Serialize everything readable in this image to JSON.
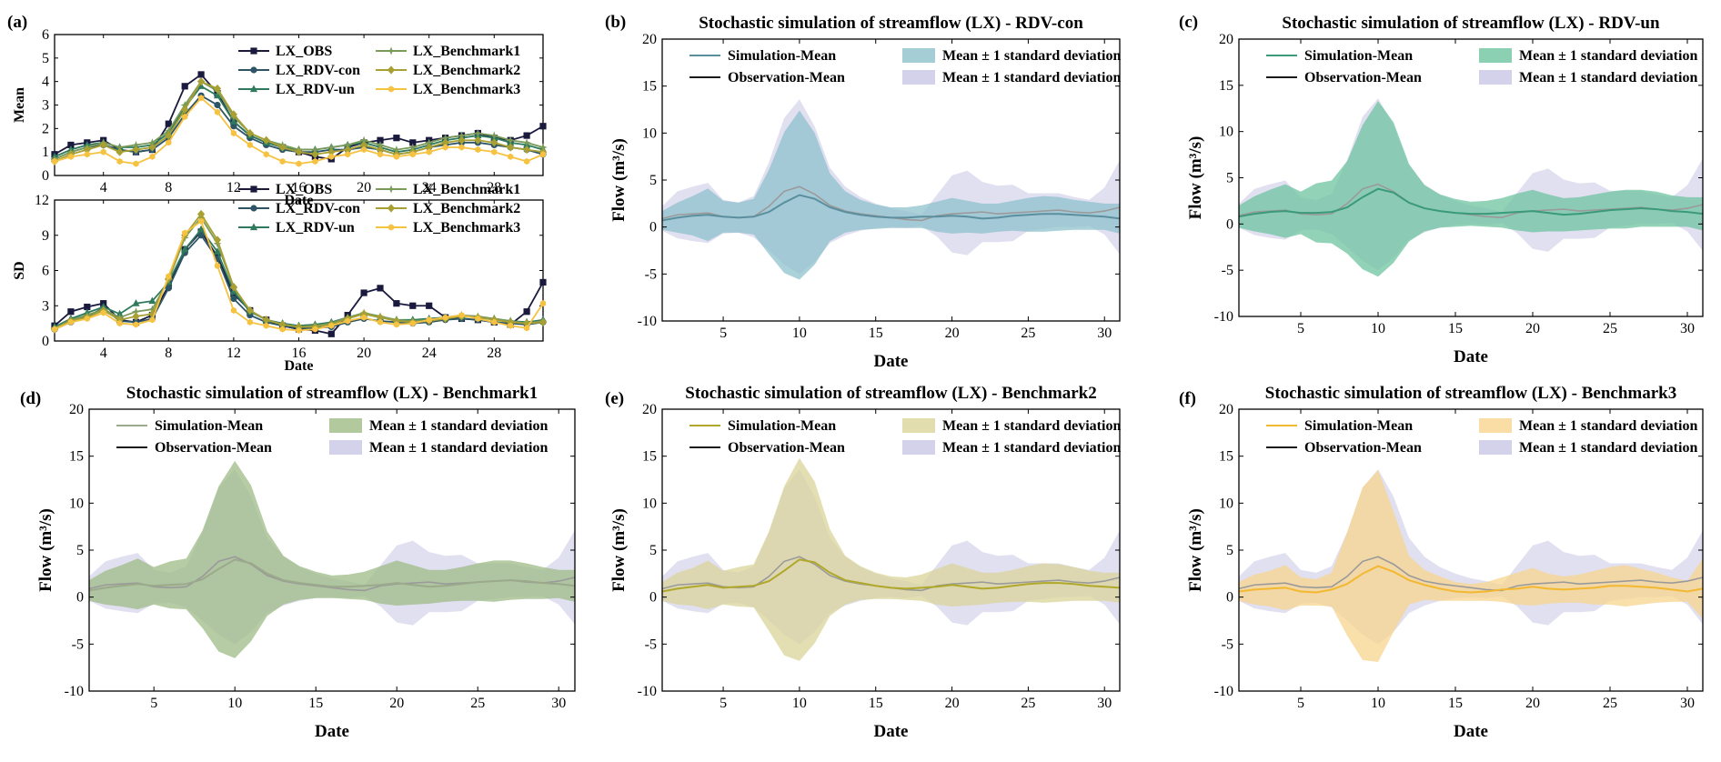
{
  "figure": {
    "description_free": true
  },
  "chart_data": [
    {
      "id": "a_mean",
      "panel_label": "(a)",
      "type": "line",
      "title": "",
      "xlabel": "Date",
      "ylabel": "Mean",
      "xlim": [
        1,
        31
      ],
      "ylim": [
        0,
        6
      ],
      "xticks": [
        4,
        8,
        12,
        16,
        20,
        24,
        28
      ],
      "yticks": [
        0,
        1,
        2,
        3,
        4,
        5,
        6
      ],
      "series": [
        {
          "name": "LX_OBS",
          "color": "#1a1a3e",
          "marker": "square",
          "values": [
            0.9,
            1.3,
            1.4,
            1.5,
            1.1,
            1.0,
            1.1,
            2.2,
            3.8,
            4.3,
            3.5,
            2.3,
            1.7,
            1.4,
            1.2,
            1.0,
            0.8,
            0.7,
            1.2,
            1.4,
            1.5,
            1.6,
            1.4,
            1.5,
            1.6,
            1.7,
            1.8,
            1.6,
            1.5,
            1.7,
            2.1
          ]
        },
        {
          "name": "LX_RDV-con",
          "color": "#2e5566",
          "marker": "circle",
          "values": [
            0.7,
            1.0,
            1.2,
            1.3,
            1.1,
            1.0,
            1.1,
            1.6,
            2.6,
            3.4,
            3.0,
            2.1,
            1.6,
            1.3,
            1.1,
            1.0,
            1.0,
            1.1,
            1.1,
            1.2,
            1.1,
            0.9,
            1.0,
            1.2,
            1.3,
            1.4,
            1.4,
            1.3,
            1.2,
            1.1,
            0.9
          ]
        },
        {
          "name": "LX_RDV-un",
          "color": "#2f7a5c",
          "marker": "triangle",
          "values": [
            0.8,
            1.1,
            1.3,
            1.4,
            1.2,
            1.2,
            1.3,
            1.8,
            2.9,
            3.8,
            3.4,
            2.3,
            1.7,
            1.4,
            1.2,
            1.1,
            1.1,
            1.2,
            1.3,
            1.4,
            1.2,
            1.0,
            1.1,
            1.3,
            1.5,
            1.6,
            1.7,
            1.6,
            1.4,
            1.3,
            1.1
          ]
        },
        {
          "name": "LX_Benchmark1",
          "color": "#7a9a5a",
          "marker": "star",
          "values": [
            0.7,
            1.0,
            1.2,
            1.4,
            1.2,
            1.3,
            1.4,
            1.9,
            3.0,
            4.0,
            3.6,
            2.5,
            1.8,
            1.5,
            1.3,
            1.1,
            1.1,
            1.2,
            1.3,
            1.5,
            1.3,
            1.1,
            1.2,
            1.4,
            1.6,
            1.7,
            1.8,
            1.7,
            1.5,
            1.4,
            1.2
          ]
        },
        {
          "name": "LX_Benchmark2",
          "color": "#a8a032",
          "marker": "diamond",
          "values": [
            0.6,
            0.9,
            1.1,
            1.3,
            1.0,
            1.1,
            1.2,
            1.7,
            2.8,
            4.0,
            3.7,
            2.6,
            1.8,
            1.5,
            1.2,
            1.0,
            0.9,
            1.0,
            1.1,
            1.3,
            1.1,
            0.9,
            1.0,
            1.2,
            1.4,
            1.5,
            1.5,
            1.4,
            1.2,
            1.1,
            1.0
          ]
        },
        {
          "name": "LX_Benchmark3",
          "color": "#f5c242",
          "marker": "hexagon",
          "values": [
            0.6,
            0.8,
            0.9,
            1.0,
            0.6,
            0.5,
            0.8,
            1.4,
            2.5,
            3.3,
            2.7,
            1.8,
            1.3,
            0.9,
            0.6,
            0.5,
            0.6,
            0.8,
            0.9,
            1.1,
            0.9,
            0.8,
            0.9,
            1.0,
            1.2,
            1.2,
            1.1,
            1.0,
            0.8,
            0.6,
            0.9
          ]
        }
      ],
      "legend": "top-center, two columns"
    },
    {
      "id": "a_sd",
      "type": "line",
      "title": "",
      "xlabel": "Date",
      "ylabel": "SD",
      "xlim": [
        1,
        31
      ],
      "ylim": [
        0,
        12
      ],
      "xticks": [
        4,
        8,
        12,
        16,
        20,
        24,
        28
      ],
      "yticks": [
        0,
        3,
        6,
        9,
        12
      ],
      "series": [
        {
          "name": "LX_OBS",
          "color": "#1a1a3e",
          "marker": "square",
          "values": [
            1.3,
            2.5,
            2.9,
            3.2,
            1.8,
            1.6,
            2.2,
            4.7,
            7.8,
            9.3,
            7.2,
            4.0,
            2.6,
            1.8,
            1.3,
            1.0,
            0.9,
            0.6,
            2.2,
            4.1,
            4.5,
            3.2,
            3.0,
            3.0,
            2.0,
            1.9,
            1.8,
            1.6,
            1.4,
            2.5,
            5.0
          ]
        },
        {
          "name": "LX_RDV-con",
          "color": "#2e5566",
          "marker": "circle",
          "values": [
            1.0,
            1.6,
            2.1,
            2.8,
            1.7,
            1.6,
            1.9,
            4.5,
            7.5,
            9.0,
            7.0,
            3.6,
            2.2,
            1.6,
            1.3,
            1.1,
            1.1,
            1.2,
            1.6,
            1.9,
            1.7,
            1.6,
            1.5,
            1.6,
            1.8,
            1.9,
            1.8,
            1.6,
            1.5,
            1.4,
            1.6
          ]
        },
        {
          "name": "LX_RDV-un",
          "color": "#2f7a5c",
          "marker": "triangle",
          "values": [
            1.2,
            1.9,
            2.4,
            2.9,
            2.3,
            3.2,
            3.4,
            5.0,
            7.8,
            9.5,
            7.6,
            4.2,
            2.5,
            1.8,
            1.5,
            1.3,
            1.4,
            1.6,
            2.0,
            2.3,
            2.0,
            1.8,
            1.8,
            1.9,
            2.0,
            2.1,
            2.0,
            1.9,
            1.7,
            1.6,
            1.8
          ]
        },
        {
          "name": "LX_Benchmark1",
          "color": "#7a9a5a",
          "marker": "star",
          "values": [
            1.1,
            1.8,
            2.2,
            2.7,
            2.0,
            2.5,
            2.7,
            5.2,
            8.8,
            10.5,
            8.3,
            4.5,
            2.6,
            1.8,
            1.4,
            1.2,
            1.3,
            1.5,
            2.0,
            2.4,
            2.1,
            1.8,
            1.7,
            1.8,
            2.0,
            2.2,
            2.1,
            1.9,
            1.7,
            1.5,
            1.7
          ]
        },
        {
          "name": "LX_Benchmark2",
          "color": "#a8a032",
          "marker": "diamond",
          "values": [
            1.0,
            1.7,
            2.0,
            2.6,
            1.8,
            2.1,
            2.3,
            5.3,
            9.0,
            10.8,
            8.6,
            4.6,
            2.6,
            1.8,
            1.4,
            1.2,
            1.2,
            1.4,
            1.9,
            2.3,
            2.0,
            1.7,
            1.6,
            1.7,
            1.9,
            2.1,
            2.0,
            1.8,
            1.6,
            1.5,
            1.6
          ]
        },
        {
          "name": "LX_Benchmark3",
          "color": "#f5c242",
          "marker": "hexagon",
          "values": [
            1.0,
            1.6,
            1.9,
            2.4,
            1.5,
            1.4,
            1.8,
            5.5,
            9.2,
            10.2,
            6.4,
            2.6,
            1.6,
            1.3,
            1.0,
            0.9,
            1.0,
            1.3,
            1.7,
            2.0,
            1.6,
            1.4,
            1.5,
            1.8,
            2.0,
            2.2,
            1.9,
            1.6,
            1.3,
            1.1,
            3.2
          ]
        }
      ],
      "legend": "top-center, two columns"
    },
    {
      "id": "b",
      "panel_label": "(b)",
      "type": "area",
      "title": "Stochastic simulation of streamflow (LX) - RDV-con",
      "xlabel": "Date",
      "ylabel": "Flow (m³/s)",
      "xlim": [
        1,
        31
      ],
      "ylim": [
        -10,
        20
      ],
      "xticks": [
        5,
        10,
        15,
        20,
        25,
        30
      ],
      "yticks": [
        -10,
        -5,
        0,
        5,
        10,
        15,
        20
      ],
      "sim_color": "#5b8f9e",
      "band_color": "#8fc1cc",
      "legend": [
        "Simulation-Mean",
        "Observation-Mean",
        "Mean ± 1 standard deviation",
        "Mean ± 1 standard deviation"
      ]
    },
    {
      "id": "c",
      "panel_label": "(c)",
      "type": "area",
      "title": "Stochastic simulation of streamflow (LX) - RDV-un",
      "xlabel": "Date",
      "ylabel": "Flow (m³/s)",
      "xlim": [
        1,
        31
      ],
      "ylim": [
        -10,
        20
      ],
      "xticks": [
        5,
        10,
        15,
        20,
        25,
        30
      ],
      "yticks": [
        -10,
        -5,
        0,
        5,
        10,
        15,
        20
      ],
      "sim_color": "#3a9a7a",
      "band_color": "#6ec4a0",
      "legend": [
        "Simulation-Mean",
        "Observation-Mean",
        "Mean ± 1 standard deviation",
        "Mean ± 1 standard deviation"
      ]
    },
    {
      "id": "d",
      "panel_label": "(d)",
      "type": "area",
      "title": "Stochastic simulation of streamflow (LX) - Benchmark1",
      "xlabel": "Date",
      "ylabel": "Flow (m³/s)",
      "xlim": [
        1,
        31
      ],
      "ylim": [
        -10,
        20
      ],
      "xticks": [
        5,
        10,
        15,
        20,
        25,
        30
      ],
      "yticks": [
        -10,
        -5,
        0,
        5,
        10,
        15,
        20
      ],
      "sim_color": "#9aaa8a",
      "band_color": "#9dbb85",
      "legend": [
        "Simulation-Mean",
        "Observation-Mean",
        "Mean ± 1 standard deviation",
        "Mean ± 1 standard deviation"
      ]
    },
    {
      "id": "e",
      "panel_label": "(e)",
      "type": "area",
      "title": "Stochastic simulation of streamflow (LX) - Benchmark2",
      "xlabel": "Date",
      "ylabel": "Flow (m³/s)",
      "xlim": [
        1,
        31
      ],
      "ylim": [
        -10,
        20
      ],
      "xticks": [
        5,
        10,
        15,
        20,
        25,
        30
      ],
      "yticks": [
        -10,
        -5,
        0,
        5,
        10,
        15,
        20
      ],
      "sim_color": "#b0a82a",
      "band_color": "#d9d49a",
      "legend": [
        "Simulation-Mean",
        "Observation-Mean",
        "Mean ± 1 standard deviation",
        "Mean ± 1 standard deviation"
      ]
    },
    {
      "id": "f",
      "panel_label": "(f)",
      "type": "area",
      "title": "Stochastic simulation of streamflow (LX) - Benchmark3",
      "xlabel": "Date",
      "ylabel": "Flow (m³/s)",
      "xlim": [
        1,
        31
      ],
      "ylim": [
        -10,
        20
      ],
      "xticks": [
        5,
        10,
        15,
        20,
        25,
        30
      ],
      "yticks": [
        -10,
        -5,
        0,
        5,
        10,
        15,
        20
      ],
      "sim_color": "#f2b830",
      "band_color": "#f7d48e",
      "legend": [
        "Simulation-Mean",
        "Observation-Mean",
        "Mean ± 1 standard deviation",
        "Mean ± 1 standard deviation"
      ]
    }
  ],
  "flow_series": {
    "obs_color": "#1a1a1a",
    "obs_band_color": "#c9c6e6",
    "obs_mean": [
      0.9,
      1.3,
      1.4,
      1.5,
      1.1,
      1.0,
      1.1,
      2.2,
      3.8,
      4.3,
      3.5,
      2.3,
      1.7,
      1.4,
      1.2,
      1.0,
      0.8,
      0.7,
      1.2,
      1.4,
      1.5,
      1.6,
      1.4,
      1.5,
      1.6,
      1.7,
      1.8,
      1.6,
      1.5,
      1.7,
      2.1
    ],
    "obs_sd": [
      1.3,
      2.5,
      2.9,
      3.2,
      1.8,
      1.6,
      2.2,
      4.7,
      7.8,
      9.3,
      7.2,
      4.0,
      2.6,
      1.8,
      1.3,
      1.0,
      0.9,
      0.6,
      2.2,
      4.1,
      4.5,
      3.2,
      3.0,
      3.0,
      2.0,
      1.9,
      1.8,
      1.6,
      1.4,
      2.5,
      5.0
    ],
    "sim_means": {
      "b": [
        0.7,
        1.0,
        1.2,
        1.3,
        1.1,
        1.0,
        1.1,
        1.6,
        2.6,
        3.4,
        3.0,
        2.1,
        1.6,
        1.3,
        1.1,
        1.0,
        1.0,
        1.1,
        1.1,
        1.2,
        1.1,
        0.9,
        1.0,
        1.2,
        1.3,
        1.4,
        1.4,
        1.3,
        1.2,
        1.1,
        0.9
      ],
      "c": [
        0.8,
        1.1,
        1.3,
        1.4,
        1.2,
        1.2,
        1.3,
        1.8,
        2.9,
        3.8,
        3.4,
        2.3,
        1.7,
        1.4,
        1.2,
        1.1,
        1.1,
        1.2,
        1.3,
        1.4,
        1.2,
        1.0,
        1.1,
        1.3,
        1.5,
        1.6,
        1.7,
        1.6,
        1.4,
        1.3,
        1.1
      ],
      "d": [
        0.7,
        1.0,
        1.2,
        1.4,
        1.2,
        1.3,
        1.4,
        1.9,
        3.0,
        4.0,
        3.6,
        2.5,
        1.8,
        1.5,
        1.3,
        1.1,
        1.1,
        1.2,
        1.3,
        1.5,
        1.3,
        1.1,
        1.2,
        1.4,
        1.6,
        1.7,
        1.8,
        1.7,
        1.5,
        1.4,
        1.2
      ],
      "e": [
        0.6,
        0.9,
        1.1,
        1.3,
        1.0,
        1.1,
        1.2,
        1.7,
        2.8,
        4.0,
        3.7,
        2.6,
        1.8,
        1.5,
        1.2,
        1.0,
        0.9,
        1.0,
        1.1,
        1.3,
        1.1,
        0.9,
        1.0,
        1.2,
        1.4,
        1.5,
        1.5,
        1.4,
        1.2,
        1.1,
        1.0
      ],
      "f": [
        0.6,
        0.8,
        0.9,
        1.0,
        0.6,
        0.5,
        0.8,
        1.4,
        2.5,
        3.3,
        2.7,
        1.8,
        1.3,
        0.9,
        0.6,
        0.5,
        0.6,
        0.8,
        0.9,
        1.1,
        0.9,
        0.8,
        0.9,
        1.0,
        1.2,
        1.2,
        1.1,
        1.0,
        0.8,
        0.6,
        0.9
      ]
    },
    "sim_sds": {
      "b": [
        1.0,
        1.6,
        2.1,
        2.8,
        1.7,
        1.6,
        1.9,
        4.5,
        7.5,
        9.0,
        7.0,
        3.6,
        2.2,
        1.6,
        1.3,
        1.1,
        1.1,
        1.2,
        1.6,
        1.9,
        1.7,
        1.6,
        1.5,
        1.6,
        1.8,
        1.9,
        1.8,
        1.6,
        1.5,
        1.4,
        1.6
      ],
      "c": [
        1.2,
        1.9,
        2.4,
        2.9,
        2.3,
        3.2,
        3.4,
        5.0,
        7.8,
        9.5,
        7.6,
        4.2,
        2.5,
        1.8,
        1.5,
        1.3,
        1.4,
        1.6,
        2.0,
        2.3,
        2.0,
        1.8,
        1.8,
        1.9,
        2.0,
        2.1,
        2.0,
        1.9,
        1.7,
        1.6,
        1.8
      ],
      "d": [
        1.1,
        1.8,
        2.2,
        2.7,
        2.0,
        2.5,
        2.7,
        5.2,
        8.8,
        10.5,
        8.3,
        4.5,
        2.6,
        1.8,
        1.4,
        1.2,
        1.3,
        1.5,
        2.0,
        2.4,
        2.1,
        1.8,
        1.7,
        1.8,
        2.0,
        2.2,
        2.1,
        1.9,
        1.7,
        1.5,
        1.7
      ],
      "e": [
        1.0,
        1.7,
        2.0,
        2.6,
        1.8,
        2.1,
        2.3,
        5.3,
        9.0,
        10.8,
        8.6,
        4.6,
        2.6,
        1.8,
        1.4,
        1.2,
        1.2,
        1.4,
        1.9,
        2.3,
        2.0,
        1.7,
        1.6,
        1.7,
        1.9,
        2.1,
        2.0,
        1.8,
        1.6,
        1.5,
        1.6
      ],
      "f": [
        1.0,
        1.6,
        1.9,
        2.4,
        1.5,
        1.4,
        1.8,
        5.5,
        9.2,
        10.2,
        6.4,
        2.6,
        1.6,
        1.3,
        1.0,
        0.9,
        1.0,
        1.3,
        1.7,
        2.0,
        1.6,
        1.4,
        1.5,
        1.8,
        2.0,
        2.2,
        1.9,
        1.6,
        1.3,
        1.1,
        3.2
      ]
    }
  }
}
